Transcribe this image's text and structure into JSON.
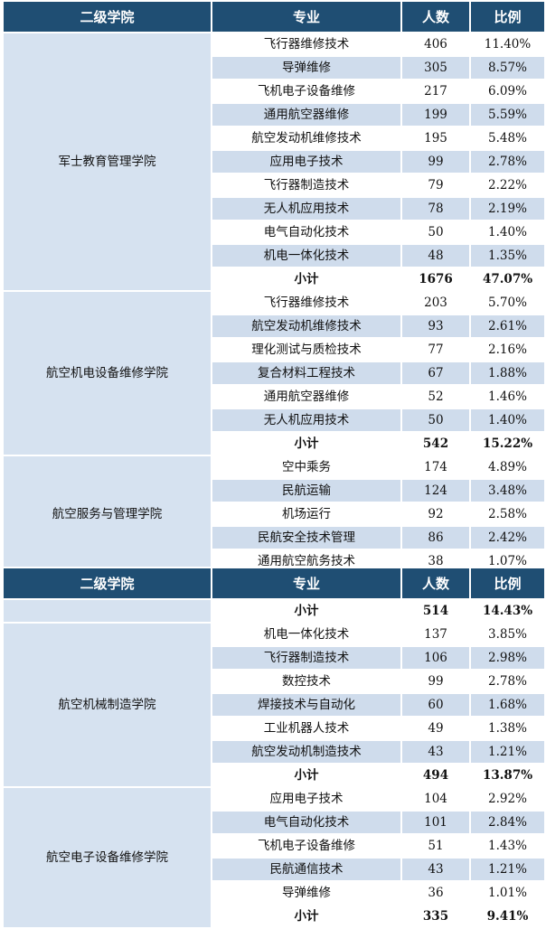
{
  "headers": {
    "college": "二级学院",
    "major": "专业",
    "count": "人数",
    "ratio": "比例"
  },
  "table1": {
    "groups": [
      {
        "college": "军士教育管理学院",
        "rows": [
          {
            "major": "飞行器维修技术",
            "count": "406",
            "ratio": "11.40%"
          },
          {
            "major": "导弹维修",
            "count": "305",
            "ratio": "8.57%"
          },
          {
            "major": "飞机电子设备维修",
            "count": "217",
            "ratio": "6.09%"
          },
          {
            "major": "通用航空器维修",
            "count": "199",
            "ratio": "5.59%"
          },
          {
            "major": "航空发动机维修技术",
            "count": "195",
            "ratio": "5.48%"
          },
          {
            "major": "应用电子技术",
            "count": "99",
            "ratio": "2.78%"
          },
          {
            "major": "飞行器制造技术",
            "count": "79",
            "ratio": "2.22%"
          },
          {
            "major": "无人机应用技术",
            "count": "78",
            "ratio": "2.19%"
          },
          {
            "major": "电气自动化技术",
            "count": "50",
            "ratio": "1.40%"
          },
          {
            "major": "机电一体化技术",
            "count": "48",
            "ratio": "1.35%"
          },
          {
            "major": "小计",
            "count": "1676",
            "ratio": "47.07%",
            "subtotal": true
          }
        ]
      },
      {
        "college": "航空机电设备维修学院",
        "rows": [
          {
            "major": "飞行器维修技术",
            "count": "203",
            "ratio": "5.70%"
          },
          {
            "major": "航空发动机维修技术",
            "count": "93",
            "ratio": "2.61%"
          },
          {
            "major": "理化测试与质检技术",
            "count": "77",
            "ratio": "2.16%"
          },
          {
            "major": "复合材料工程技术",
            "count": "67",
            "ratio": "1.88%"
          },
          {
            "major": "通用航空器维修",
            "count": "52",
            "ratio": "1.46%"
          },
          {
            "major": "无人机应用技术",
            "count": "50",
            "ratio": "1.40%"
          },
          {
            "major": "小计",
            "count": "542",
            "ratio": "15.22%",
            "subtotal": true
          }
        ]
      },
      {
        "college": "航空服务与管理学院",
        "rows": [
          {
            "major": "空中乘务",
            "count": "174",
            "ratio": "4.89%"
          },
          {
            "major": "民航运输",
            "count": "124",
            "ratio": "3.48%"
          },
          {
            "major": "机场运行",
            "count": "92",
            "ratio": "2.58%"
          },
          {
            "major": "民航安全技术管理",
            "count": "86",
            "ratio": "2.42%"
          },
          {
            "major": "通用航空航务技术",
            "count": "38",
            "ratio": "1.07%"
          }
        ]
      }
    ]
  },
  "table2": {
    "groups": [
      {
        "college": "",
        "rows": [
          {
            "major": "小计",
            "count": "514",
            "ratio": "14.43%",
            "subtotal": true
          }
        ]
      },
      {
        "college": "航空机械制造学院",
        "rows": [
          {
            "major": "机电一体化技术",
            "count": "137",
            "ratio": "3.85%"
          },
          {
            "major": "飞行器制造技术",
            "count": "106",
            "ratio": "2.98%"
          },
          {
            "major": "数控技术",
            "count": "99",
            "ratio": "2.78%"
          },
          {
            "major": "焊接技术与自动化",
            "count": "60",
            "ratio": "1.68%"
          },
          {
            "major": "工业机器人技术",
            "count": "49",
            "ratio": "1.38%"
          },
          {
            "major": "航空发动机制造技术",
            "count": "43",
            "ratio": "1.21%"
          },
          {
            "major": "小计",
            "count": "494",
            "ratio": "13.87%",
            "subtotal": true
          }
        ]
      },
      {
        "college": "航空电子设备维修学院",
        "rows": [
          {
            "major": "应用电子技术",
            "count": "104",
            "ratio": "2.92%"
          },
          {
            "major": "电气自动化技术",
            "count": "101",
            "ratio": "2.84%"
          },
          {
            "major": "飞机电子设备维修",
            "count": "51",
            "ratio": "1.43%"
          },
          {
            "major": "民航通信技术",
            "count": "43",
            "ratio": "1.21%"
          },
          {
            "major": "导弹维修",
            "count": "36",
            "ratio": "1.01%"
          },
          {
            "major": "小计",
            "count": "335",
            "ratio": "9.41%",
            "subtotal": true
          }
        ]
      }
    ]
  }
}
